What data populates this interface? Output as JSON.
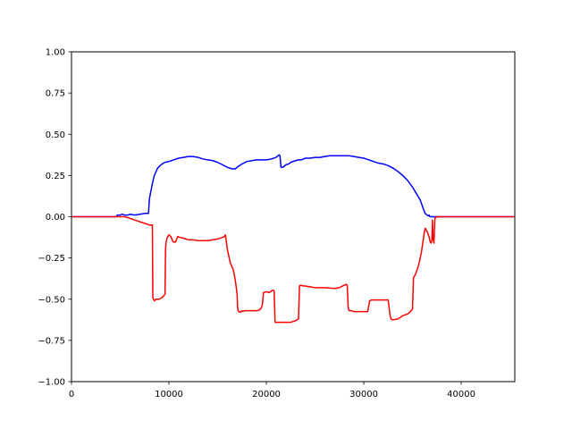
{
  "chart_data": {
    "type": "line",
    "title": "",
    "xlabel": "",
    "ylabel": "",
    "xlim": [
      0,
      45500
    ],
    "ylim": [
      -1.0,
      1.0
    ],
    "grid": false,
    "x_ticks": [
      0,
      10000,
      20000,
      30000,
      40000
    ],
    "x_tick_labels": [
      "0",
      "10000",
      "20000",
      "30000",
      "40000"
    ],
    "y_ticks": [
      -1.0,
      -0.75,
      -0.5,
      -0.25,
      0.0,
      0.25,
      0.5,
      0.75,
      1.0
    ],
    "y_tick_labels": [
      "−1.00",
      "−0.75",
      "−0.50",
      "−0.25",
      "0.00",
      "0.25",
      "0.50",
      "0.75",
      "1.00"
    ],
    "series": [
      {
        "color": "#0000ff",
        "x": [
          0,
          4600,
          4700,
          5000,
          5200,
          5500,
          5800,
          6000,
          6500,
          7000,
          7500,
          7900,
          8000,
          8100,
          8300,
          8500,
          8800,
          9000,
          9300,
          9600,
          10000,
          10500,
          11000,
          11500,
          12000,
          12500,
          13000,
          13500,
          14000,
          14500,
          15000,
          15500,
          16000,
          16500,
          16800,
          17100,
          17500,
          18000,
          18500,
          19000,
          19500,
          20000,
          20500,
          21000,
          21300,
          21400,
          21500,
          21700,
          22000,
          22300,
          22500,
          23000,
          23300,
          23600,
          24000,
          24500,
          25000,
          25500,
          26000,
          26500,
          27000,
          27500,
          28000,
          28500,
          29000,
          29500,
          30000,
          30500,
          31000,
          31500,
          32000,
          32500,
          33000,
          33500,
          34000,
          34500,
          35000,
          35500,
          35800,
          36100,
          36300,
          36500,
          36600,
          36700,
          36800,
          37000,
          37500,
          45500
        ],
        "y": [
          0.0,
          0.0,
          0.01,
          0.01,
          0.015,
          0.01,
          0.01,
          0.015,
          0.01,
          0.015,
          0.02,
          0.02,
          0.11,
          0.14,
          0.2,
          0.25,
          0.29,
          0.305,
          0.32,
          0.33,
          0.335,
          0.345,
          0.355,
          0.36,
          0.365,
          0.365,
          0.36,
          0.35,
          0.345,
          0.34,
          0.33,
          0.315,
          0.3,
          0.29,
          0.29,
          0.305,
          0.32,
          0.335,
          0.34,
          0.345,
          0.345,
          0.345,
          0.35,
          0.36,
          0.375,
          0.37,
          0.3,
          0.3,
          0.315,
          0.32,
          0.33,
          0.34,
          0.345,
          0.345,
          0.355,
          0.355,
          0.36,
          0.36,
          0.365,
          0.37,
          0.37,
          0.37,
          0.37,
          0.37,
          0.365,
          0.36,
          0.355,
          0.345,
          0.335,
          0.325,
          0.32,
          0.31,
          0.295,
          0.275,
          0.25,
          0.22,
          0.18,
          0.13,
          0.1,
          0.05,
          0.02,
          0.01,
          0.005,
          0.01,
          0.0,
          0.0,
          0.0,
          0.0
        ]
      },
      {
        "color": "#ff0000",
        "x": [
          0,
          5500,
          6000,
          6500,
          7000,
          7500,
          8000,
          8300,
          8350,
          8500,
          8700,
          9000,
          9300,
          9600,
          9650,
          9700,
          9800,
          10000,
          10200,
          10400,
          10600,
          10700,
          10900,
          11100,
          11500,
          12000,
          12500,
          13000,
          13500,
          14000,
          14500,
          15000,
          15500,
          15700,
          15800,
          16000,
          16300,
          16600,
          16800,
          17000,
          17050,
          17100,
          17300,
          17500,
          17600,
          17700,
          18000,
          18500,
          19000,
          19300,
          19500,
          19600,
          19700,
          20000,
          20300,
          20500,
          20700,
          20800,
          20900,
          21000,
          22000,
          22500,
          23000,
          23300,
          23400,
          23500,
          23800,
          24000,
          25000,
          26000,
          27000,
          27500,
          28000,
          28200,
          28300,
          28400,
          28500,
          28600,
          28700,
          29000,
          30000,
          30400,
          30600,
          30800,
          31000,
          32000,
          32500,
          32700,
          32800,
          32900,
          33000,
          33500,
          34000,
          34500,
          34800,
          35000,
          35100,
          35300,
          35600,
          35900,
          36200,
          36300,
          36500,
          36700,
          36800,
          36900,
          37000,
          37050,
          37100,
          37200,
          37300,
          37500,
          45500
        ],
        "y": [
          0.0,
          0.0,
          -0.01,
          -0.02,
          -0.03,
          -0.04,
          -0.05,
          -0.05,
          -0.49,
          -0.51,
          -0.5,
          -0.5,
          -0.49,
          -0.47,
          -0.2,
          -0.16,
          -0.13,
          -0.11,
          -0.12,
          -0.15,
          -0.155,
          -0.15,
          -0.12,
          -0.125,
          -0.13,
          -0.14,
          -0.14,
          -0.145,
          -0.145,
          -0.145,
          -0.14,
          -0.135,
          -0.125,
          -0.12,
          -0.11,
          -0.2,
          -0.28,
          -0.32,
          -0.38,
          -0.47,
          -0.55,
          -0.57,
          -0.58,
          -0.57,
          -0.575,
          -0.57,
          -0.57,
          -0.57,
          -0.57,
          -0.565,
          -0.55,
          -0.53,
          -0.46,
          -0.455,
          -0.46,
          -0.45,
          -0.445,
          -0.45,
          -0.64,
          -0.64,
          -0.64,
          -0.64,
          -0.63,
          -0.62,
          -0.42,
          -0.415,
          -0.42,
          -0.42,
          -0.43,
          -0.43,
          -0.435,
          -0.43,
          -0.415,
          -0.41,
          -0.415,
          -0.55,
          -0.57,
          -0.57,
          -0.57,
          -0.575,
          -0.575,
          -0.575,
          -0.51,
          -0.505,
          -0.505,
          -0.505,
          -0.505,
          -0.6,
          -0.62,
          -0.625,
          -0.625,
          -0.62,
          -0.6,
          -0.59,
          -0.575,
          -0.56,
          -0.37,
          -0.35,
          -0.3,
          -0.22,
          -0.1,
          -0.07,
          -0.09,
          -0.12,
          -0.15,
          -0.16,
          -0.14,
          -0.02,
          -0.12,
          -0.16,
          -0.01,
          0.0,
          0.0
        ]
      }
    ]
  }
}
